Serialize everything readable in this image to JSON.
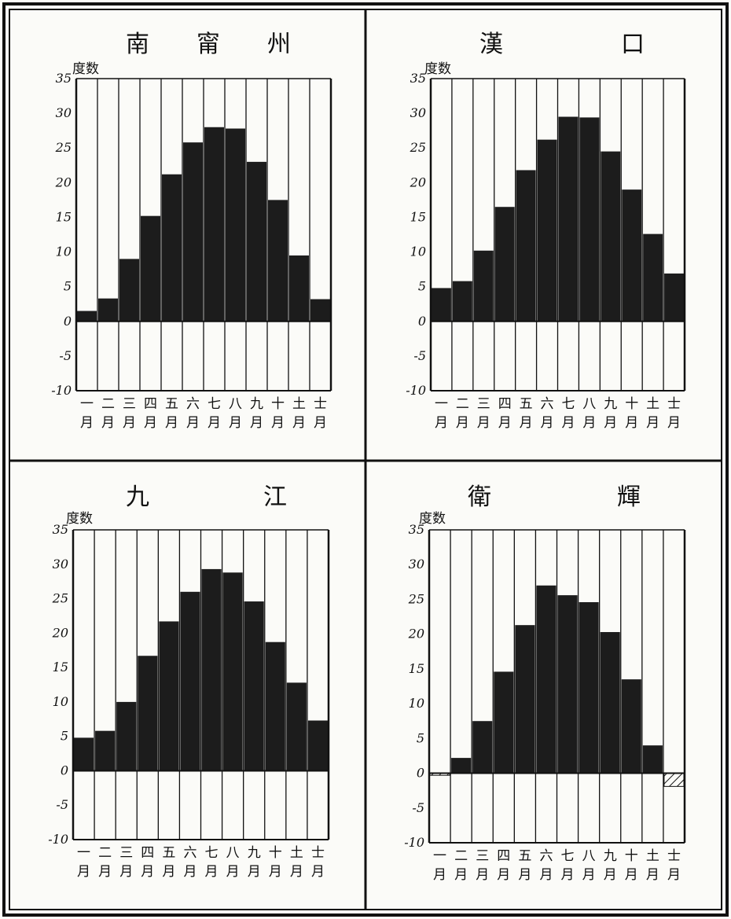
{
  "month_labels": [
    {
      "top": "一",
      "bottom": "月"
    },
    {
      "top": "二",
      "bottom": "月"
    },
    {
      "top": "三",
      "bottom": "月"
    },
    {
      "top": "四",
      "bottom": "月"
    },
    {
      "top": "五",
      "bottom": "月"
    },
    {
      "top": "六",
      "bottom": "月"
    },
    {
      "top": "七",
      "bottom": "月"
    },
    {
      "top": "八",
      "bottom": "月"
    },
    {
      "top": "九",
      "bottom": "月"
    },
    {
      "top": "十",
      "bottom": "月"
    },
    {
      "top": "土",
      "bottom": "月"
    },
    {
      "top": "士",
      "bottom": "月"
    }
  ],
  "colors": {
    "bar_fill": "#1c1c1c",
    "frame": "#111111",
    "background": "#fbfbf8"
  },
  "chart_data": [
    {
      "type": "bar",
      "title_chars": [
        "南",
        "甯",
        "州"
      ],
      "unit_label": "度数",
      "yticks": [
        "35",
        "30",
        "25",
        "20",
        "15",
        "10",
        "5",
        "0",
        "-5",
        "-10"
      ],
      "ylim": [
        -10,
        35
      ],
      "categories": [
        "一月",
        "二月",
        "三月",
        "四月",
        "五月",
        "六月",
        "七月",
        "八月",
        "九月",
        "十月",
        "土月",
        "士月"
      ],
      "values": [
        1.5,
        3.3,
        9.0,
        15.2,
        21.2,
        25.8,
        28.0,
        27.8,
        23.0,
        17.5,
        9.5,
        3.2
      ]
    },
    {
      "type": "bar",
      "title_chars": [
        "漢",
        "口"
      ],
      "unit_label": "度数",
      "yticks": [
        "35",
        "30",
        "25",
        "20",
        "15",
        "10",
        "5",
        "0",
        "-5",
        "-10"
      ],
      "ylim": [
        -10,
        35
      ],
      "categories": [
        "一月",
        "二月",
        "三月",
        "四月",
        "五月",
        "六月",
        "七月",
        "八月",
        "九月",
        "十月",
        "土月",
        "士月"
      ],
      "values": [
        4.8,
        5.8,
        10.2,
        16.5,
        21.8,
        26.2,
        29.5,
        29.4,
        24.5,
        19.0,
        12.6,
        6.9
      ]
    },
    {
      "type": "bar",
      "title_chars": [
        "九",
        "江"
      ],
      "unit_label": "度数",
      "yticks": [
        "35",
        "30",
        "25",
        "20",
        "15",
        "10",
        "5",
        "0",
        "-5",
        "-10"
      ],
      "ylim": [
        -10,
        35
      ],
      "categories": [
        "一月",
        "二月",
        "三月",
        "四月",
        "五月",
        "六月",
        "七月",
        "八月",
        "九月",
        "十月",
        "土月",
        "士月"
      ],
      "values": [
        4.8,
        5.8,
        10.0,
        16.7,
        21.7,
        26.0,
        29.3,
        28.8,
        24.6,
        18.7,
        12.8,
        7.3
      ]
    },
    {
      "type": "bar",
      "title_chars": [
        "衛",
        "輝"
      ],
      "unit_label": "度数",
      "yticks": [
        "35",
        "30",
        "25",
        "20",
        "15",
        "10",
        "5",
        "0",
        "-5",
        "-10"
      ],
      "ylim": [
        -10,
        35
      ],
      "categories": [
        "一月",
        "二月",
        "三月",
        "四月",
        "五月",
        "六月",
        "七月",
        "八月",
        "九月",
        "十月",
        "土月",
        "士月"
      ],
      "values": [
        -0.3,
        2.2,
        7.5,
        14.6,
        21.3,
        27.0,
        25.6,
        24.6,
        20.3,
        13.5,
        4.0,
        -1.9
      ]
    }
  ]
}
